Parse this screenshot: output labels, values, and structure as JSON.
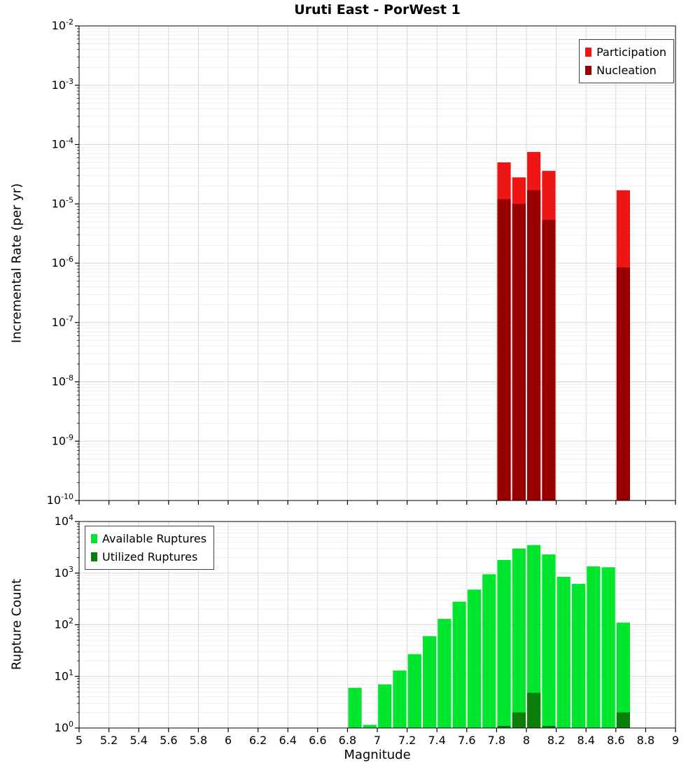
{
  "title": "Uruti East - PorWest 1",
  "colors": {
    "participation": "#ee1515",
    "nucleation": "#990000",
    "available": "#00e62e",
    "utilized": "#0a7d0a",
    "grid_major": "#d8d8d8",
    "grid_minor": "#efefef",
    "axis": "#000000"
  },
  "x_axis": {
    "label": "Magnitude",
    "tick_values": [
      5,
      5.2,
      5.4,
      5.6,
      5.8,
      6,
      6.2,
      6.4,
      6.6,
      6.8,
      7,
      7.2,
      7.4,
      7.6,
      7.8,
      8,
      8.2,
      8.4,
      8.6,
      8.8,
      9
    ],
    "tick_labels": [
      "5",
      "5.2",
      "5.4",
      "5.6",
      "5.8",
      "6",
      "6.2",
      "6.4",
      "6.6",
      "6.8",
      "7",
      "7.2",
      "7.4",
      "7.6",
      "7.8",
      "8",
      "8.2",
      "8.4",
      "8.6",
      "8.8",
      "9"
    ]
  },
  "chart_data": [
    {
      "type": "bar",
      "title": "Uruti East - PorWest 1",
      "ylabel": "Incremental Rate (per yr)",
      "xlabel": "",
      "yscale": "log",
      "ylim": [
        1e-10,
        0.01
      ],
      "xlim": [
        5,
        9
      ],
      "y_tick_exps": [
        -2,
        -3,
        -4,
        -5,
        -6,
        -7,
        -8,
        -9,
        -10
      ],
      "grid": true,
      "legend_position": "top-right",
      "bar_width": 0.1,
      "series": [
        {
          "name": "Participation",
          "color_key": "participation",
          "x": [
            7.85,
            7.95,
            8.05,
            8.15,
            8.65
          ],
          "values": [
            5e-05,
            2.8e-05,
            7.5e-05,
            3.6e-05,
            1.7e-05
          ]
        },
        {
          "name": "Nucleation",
          "color_key": "nucleation",
          "x": [
            7.85,
            7.95,
            8.05,
            8.15,
            8.65
          ],
          "values": [
            1.2e-05,
            1e-05,
            1.7e-05,
            5.4e-06,
            8.5e-07
          ]
        }
      ]
    },
    {
      "type": "bar",
      "title": "",
      "ylabel": "Rupture Count",
      "xlabel": "Magnitude",
      "yscale": "log",
      "ylim": [
        1,
        10000.0
      ],
      "xlim": [
        5,
        9
      ],
      "y_tick_exps": [
        0,
        1,
        2,
        3,
        4
      ],
      "grid": true,
      "legend_position": "top-left",
      "bar_width": 0.1,
      "series": [
        {
          "name": "Available Ruptures",
          "color_key": "available",
          "x": [
            6.85,
            6.95,
            7.05,
            7.15,
            7.25,
            7.35,
            7.45,
            7.55,
            7.65,
            7.75,
            7.85,
            7.95,
            8.05,
            8.15,
            8.25,
            8.35,
            8.45,
            8.55,
            8.65
          ],
          "values": [
            6,
            1.15,
            7,
            13,
            27,
            60,
            130,
            280,
            480,
            950,
            1800,
            3000,
            3500,
            2300,
            850,
            620,
            1350,
            1300,
            110
          ]
        },
        {
          "name": "Utilized Ruptures",
          "color_key": "utilized",
          "x": [
            7.85,
            7.95,
            8.05,
            8.15,
            8.65
          ],
          "values": [
            1.1,
            2,
            4.8,
            1.1,
            2
          ]
        }
      ]
    }
  ]
}
